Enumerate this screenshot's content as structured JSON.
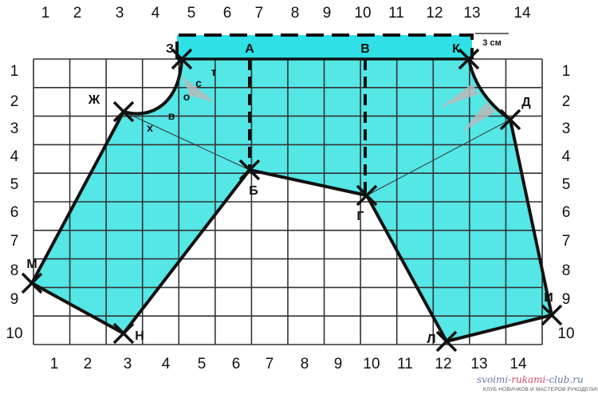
{
  "axes": {
    "top": [
      "1",
      "2",
      "3",
      "4",
      "5",
      "6",
      "7",
      "8",
      "9",
      "10",
      "11",
      "12",
      "13",
      "14"
    ],
    "bottom": [
      "1",
      "2",
      "3",
      "4",
      "5",
      "6",
      "7",
      "8",
      "9",
      "10",
      "11",
      "12",
      "13",
      "14"
    ],
    "left": [
      "1",
      "2",
      "3",
      "4",
      "5",
      "6",
      "7",
      "8",
      "9",
      "10"
    ],
    "right": [
      "1",
      "2",
      "3",
      "4",
      "5",
      "6",
      "7",
      "8",
      "9",
      "10"
    ]
  },
  "points": {
    "Z": "З",
    "A": "А",
    "V": "В",
    "K": "К",
    "Zh": "Ж",
    "D": "Д",
    "B": "Б",
    "G": "Г",
    "M": "М",
    "N": "Н",
    "L": "Л",
    "I": "И"
  },
  "small_labels": {
    "s": "с",
    "t": "т",
    "o": "о",
    "v": "в",
    "kh": "х"
  },
  "waistband_label": "3 см",
  "colors": {
    "fill": "#55e6e6",
    "band": "#2fe0e6",
    "grid": "#333333",
    "dart": "#b8b8b8"
  },
  "watermark": {
    "site_a": "svoimi-",
    "site_b": "rukami",
    "site_c": "-club.ru",
    "tagline": "КЛУБ НОВИЧКОВ И МАСТЕРОВ РУКОДЕЛИЯ"
  }
}
